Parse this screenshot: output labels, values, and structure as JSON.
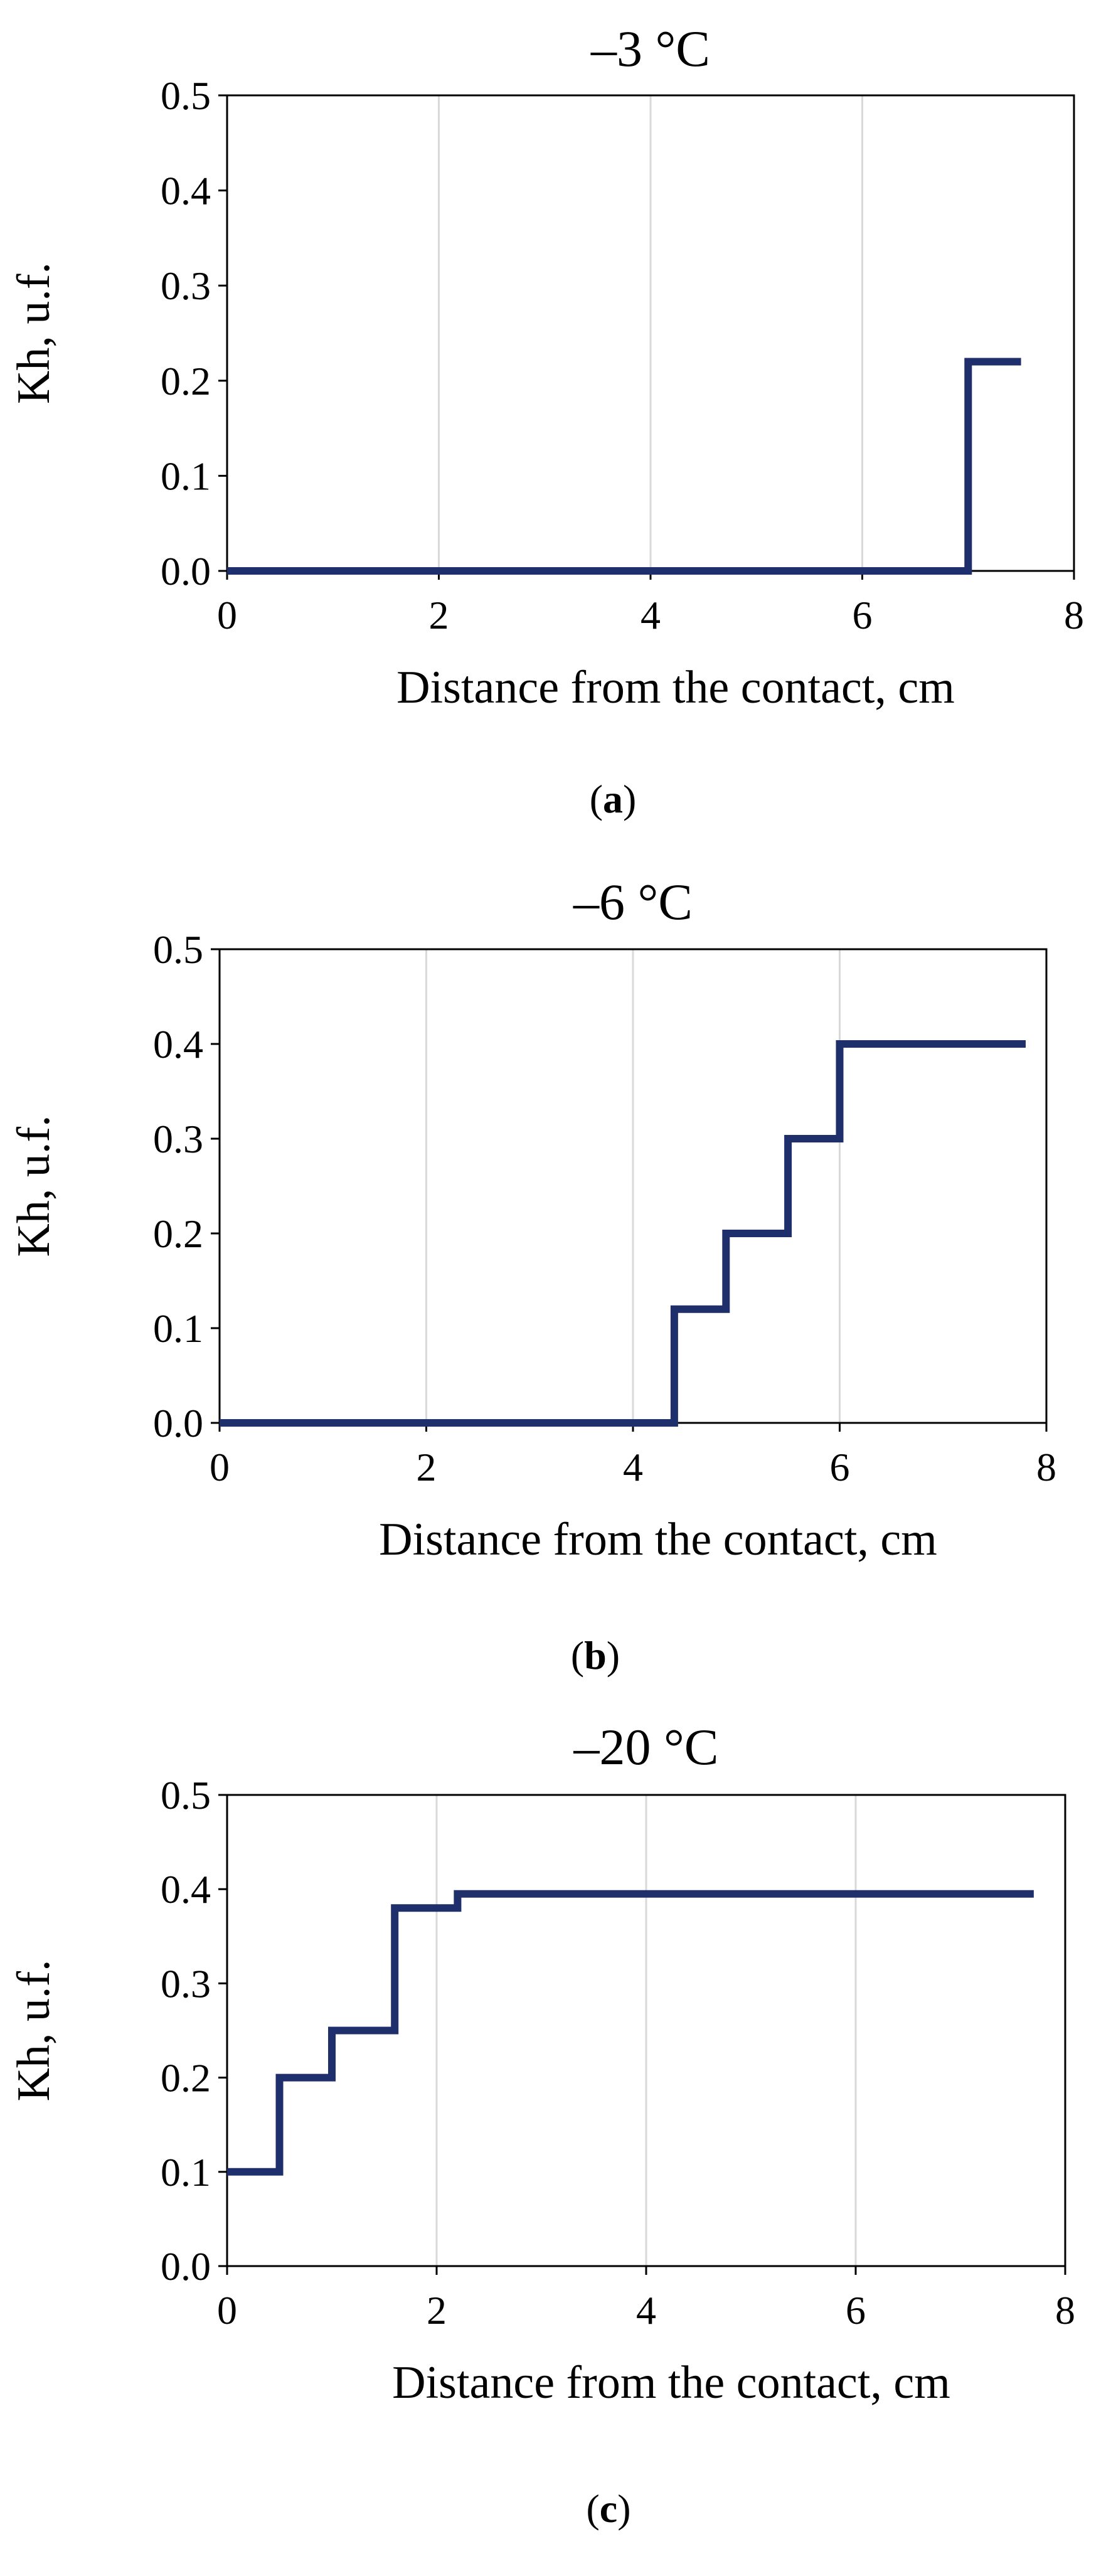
{
  "chart_data": [
    {
      "type": "line",
      "title": "–3 °C",
      "xlabel": "Distance from the contact,  cm",
      "ylabel": "Kh, u.f.",
      "xlim": [
        0,
        8
      ],
      "ylim": [
        0,
        0.5
      ],
      "xticks": [
        "0",
        "2",
        "4",
        "6",
        "8"
      ],
      "yticks": [
        "0.0",
        "0.1",
        "0.2",
        "0.3",
        "0.4",
        "0.5"
      ],
      "grid": "vertical",
      "caption": "a",
      "color": "#1f2f6b",
      "series": [
        {
          "x": [
            0,
            7.0,
            7.0,
            7.5
          ],
          "y": [
            0.0,
            0.0,
            0.22,
            0.22
          ]
        }
      ]
    },
    {
      "type": "line",
      "title": "–6 °C",
      "xlabel": "Distance from the contact,  cm",
      "ylabel": "Kh, u.f.",
      "xlim": [
        0,
        8
      ],
      "ylim": [
        0,
        0.5
      ],
      "xticks": [
        "0",
        "2",
        "4",
        "6",
        "8"
      ],
      "yticks": [
        "0.0",
        "0.1",
        "0.2",
        "0.3",
        "0.4",
        "0.5"
      ],
      "grid": "vertical",
      "caption": "b",
      "color": "#1f2f6b",
      "series": [
        {
          "x": [
            0,
            4.4,
            4.4,
            4.9,
            4.9,
            5.5,
            5.5,
            6.0,
            6.0,
            7.8
          ],
          "y": [
            0.0,
            0.0,
            0.12,
            0.12,
            0.2,
            0.2,
            0.3,
            0.3,
            0.4,
            0.4
          ]
        }
      ]
    },
    {
      "type": "line",
      "title": "–20 °C",
      "xlabel": "Distance from the contact,  cm",
      "ylabel": "Kh, u.f.",
      "xlim": [
        0,
        8
      ],
      "ylim": [
        0,
        0.5
      ],
      "xticks": [
        "0",
        "2",
        "4",
        "6",
        "8"
      ],
      "yticks": [
        "0.0",
        "0.1",
        "0.2",
        "0.3",
        "0.4",
        "0.5"
      ],
      "grid": "vertical",
      "caption": "c",
      "color": "#1f2f6b",
      "series": [
        {
          "x": [
            0,
            0.5,
            0.5,
            1.0,
            1.0,
            1.6,
            1.6,
            2.2,
            2.2,
            7.7
          ],
          "y": [
            0.1,
            0.1,
            0.2,
            0.2,
            0.25,
            0.25,
            0.38,
            0.38,
            0.395,
            0.395
          ]
        }
      ]
    }
  ]
}
